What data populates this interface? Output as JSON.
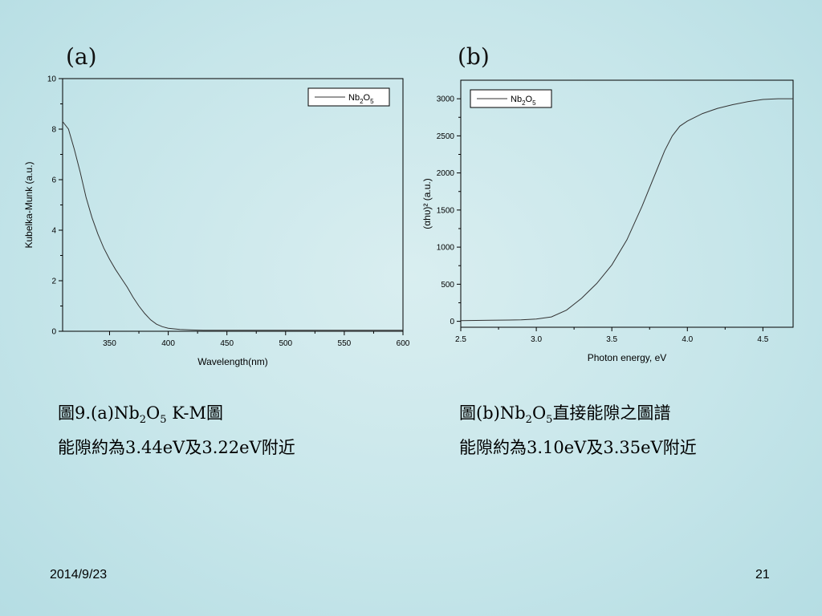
{
  "panel_a_label": "(a)",
  "panel_b_label": "(b)",
  "chart_data": [
    {
      "type": "line",
      "xlabel": "Wavelength(nm)",
      "ylabel": "Kubelka-Munk (a.u.)",
      "xlim": [
        310,
        600
      ],
      "ylim": [
        0,
        10
      ],
      "x_ticks": [
        350,
        400,
        450,
        500,
        550,
        600
      ],
      "y_ticks": [
        0,
        2,
        4,
        6,
        8,
        10
      ],
      "legend": {
        "placement": "top-right",
        "base": "Nb",
        "sub1": "2",
        "mid": "O",
        "sub2": "5"
      },
      "grid": false,
      "series": [
        {
          "name": "Nb2O5",
          "x": [
            310,
            315,
            320,
            325,
            330,
            335,
            340,
            345,
            350,
            355,
            360,
            365,
            370,
            375,
            380,
            385,
            390,
            395,
            400,
            410,
            420,
            430,
            450,
            500,
            550,
            600
          ],
          "y": [
            8.3,
            8.0,
            7.2,
            6.3,
            5.3,
            4.5,
            3.85,
            3.3,
            2.85,
            2.45,
            2.1,
            1.75,
            1.35,
            1.0,
            0.7,
            0.45,
            0.28,
            0.18,
            0.12,
            0.07,
            0.05,
            0.04,
            0.04,
            0.04,
            0.04,
            0.04
          ]
        }
      ]
    },
    {
      "type": "line",
      "xlabel": "Photon energy, eV",
      "ylabel": "(αhυ)² (a.u.)",
      "xlim": [
        2.5,
        4.7
      ],
      "ylim": [
        -80,
        3250
      ],
      "x_ticks": [
        "2.5",
        "3.0",
        "3.5",
        "4.0",
        "4.5"
      ],
      "y_ticks": [
        0,
        500,
        1000,
        1500,
        2000,
        2500,
        3000
      ],
      "legend": {
        "placement": "top-left",
        "base": "Nb",
        "sub1": "2",
        "mid": "O",
        "sub2": "5"
      },
      "grid": false,
      "series": [
        {
          "name": "Nb2O5",
          "x": [
            2.5,
            2.7,
            2.9,
            3.0,
            3.1,
            3.2,
            3.3,
            3.4,
            3.5,
            3.6,
            3.7,
            3.8,
            3.85,
            3.9,
            3.95,
            4.0,
            4.1,
            4.2,
            4.3,
            4.4,
            4.5,
            4.6,
            4.7
          ],
          "y": [
            10,
            15,
            20,
            30,
            60,
            150,
            310,
            510,
            760,
            1100,
            1550,
            2050,
            2300,
            2500,
            2630,
            2700,
            2800,
            2870,
            2920,
            2960,
            2990,
            3000,
            3000
          ]
        }
      ]
    }
  ],
  "caption_a": {
    "line1_prefix": "圖9.(a)Nb",
    "line1_sub1": "2",
    "line1_mid": "O",
    "line1_sub2": "5",
    "line1_suffix": " K-M圖",
    "line2": "能隙約為3.44eV及3.22eV附近"
  },
  "caption_b": {
    "line1_prefix": "圖(b)Nb",
    "line1_sub1": "2",
    "line1_mid": "O",
    "line1_sub2": "5",
    "line1_suffix": "直接能隙之圖譜",
    "line2": "能隙約為3.10eV及3.35eV附近"
  },
  "footer": {
    "date": "2014/9/23",
    "page_number": "21"
  }
}
